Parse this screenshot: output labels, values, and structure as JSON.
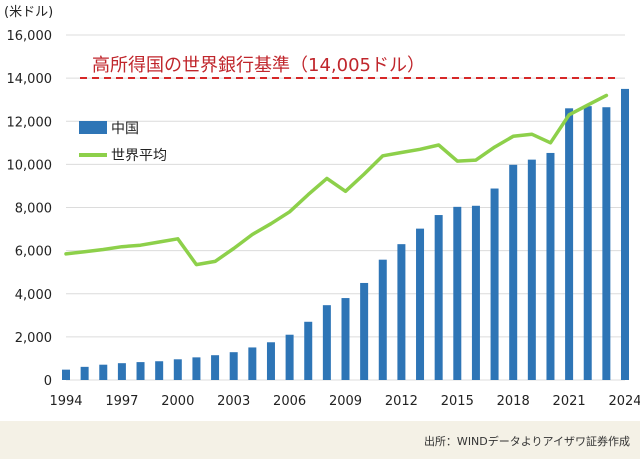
{
  "chart_data": {
    "type": "bar",
    "y_unit_label": "(米ドル)",
    "ylim": [
      0,
      16000
    ],
    "y_ticks": [
      "0",
      "2,000",
      "4,000",
      "6,000",
      "8,000",
      "10,000",
      "12,000",
      "14,000",
      "16,000"
    ],
    "x_range": [
      1994,
      2024
    ],
    "x_ticks": [
      "1994",
      "1997",
      "2000",
      "2003",
      "2006",
      "2009",
      "2012",
      "2015",
      "2018",
      "2021",
      "2024"
    ],
    "grid": "horizontal",
    "series": [
      {
        "name": "中国",
        "type": "bar",
        "color": "#2e75b6",
        "x": [
          1994,
          1995,
          1996,
          1997,
          1998,
          1999,
          2000,
          2001,
          2002,
          2003,
          2004,
          2005,
          2006,
          2007,
          2008,
          2009,
          2010,
          2011,
          2012,
          2013,
          2014,
          2015,
          2016,
          2017,
          2018,
          2019,
          2020,
          2021,
          2022,
          2023,
          2024
        ],
        "values": [
          480,
          610,
          710,
          780,
          830,
          870,
          960,
          1050,
          1150,
          1290,
          1510,
          1750,
          2100,
          2700,
          3470,
          3800,
          4500,
          5580,
          6300,
          7020,
          7650,
          8030,
          8080,
          8880,
          9980,
          10220,
          10530,
          12600,
          12700,
          12650,
          13500
        ]
      },
      {
        "name": "世界平均",
        "type": "line",
        "color": "#8dd04a",
        "x": [
          1994,
          1995,
          1996,
          1997,
          1998,
          1999,
          2000,
          2001,
          2002,
          2003,
          2004,
          2005,
          2006,
          2007,
          2008,
          2009,
          2010,
          2011,
          2012,
          2013,
          2014,
          2015,
          2016,
          2017,
          2018,
          2019,
          2020,
          2021,
          2022,
          2023
        ],
        "values": [
          5850,
          5950,
          6050,
          6180,
          6250,
          6400,
          6550,
          5350,
          5500,
          6100,
          6750,
          7250,
          7800,
          8600,
          9350,
          8750,
          9550,
          10400,
          10550,
          10700,
          10900,
          10150,
          10200,
          10800,
          11300,
          11400,
          11000,
          12300,
          12750,
          13200
        ]
      }
    ],
    "reference_line": {
      "value": 14005,
      "label": "高所得国の世界銀行基準（14,005ドル）",
      "color": "#d62828",
      "style": "dashed"
    },
    "legend_placement": "top-left"
  },
  "source_note": "出所：WINDデータよりアイザワ証券作成"
}
